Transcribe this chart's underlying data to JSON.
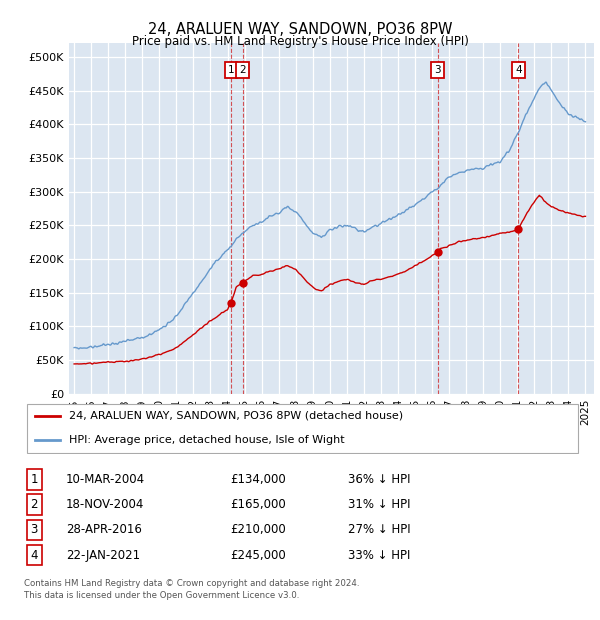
{
  "title": "24, ARALUEN WAY, SANDOWN, PO36 8PW",
  "subtitle": "Price paid vs. HM Land Registry's House Price Index (HPI)",
  "ylabel_ticks": [
    "£0",
    "£50K",
    "£100K",
    "£150K",
    "£200K",
    "£250K",
    "£300K",
    "£350K",
    "£400K",
    "£450K",
    "£500K"
  ],
  "ytick_vals": [
    0,
    50000,
    100000,
    150000,
    200000,
    250000,
    300000,
    350000,
    400000,
    450000,
    500000
  ],
  "ylim": [
    0,
    520000
  ],
  "xlim_start": 1994.7,
  "xlim_end": 2025.5,
  "hpi_color": "#6699cc",
  "price_color": "#cc0000",
  "bg_color": "#dce6f1",
  "grid_color": "#ffffff",
  "transactions": [
    {
      "num": 1,
      "date": "10-MAR-2004",
      "price": 134000,
      "pct": "36%",
      "x": 2004.19
    },
    {
      "num": 2,
      "date": "18-NOV-2004",
      "price": 165000,
      "pct": "31%",
      "x": 2004.88
    },
    {
      "num": 3,
      "date": "28-APR-2016",
      "price": 210000,
      "pct": "27%",
      "x": 2016.32
    },
    {
      "num": 4,
      "date": "22-JAN-2021",
      "price": 245000,
      "pct": "33%",
      "x": 2021.06
    }
  ],
  "legend_line1": "24, ARALUEN WAY, SANDOWN, PO36 8PW (detached house)",
  "legend_line2": "HPI: Average price, detached house, Isle of Wight",
  "footer1": "Contains HM Land Registry data © Crown copyright and database right 2024.",
  "footer2": "This data is licensed under the Open Government Licence v3.0.",
  "xtick_years": [
    1995,
    1996,
    1997,
    1998,
    1999,
    2000,
    2001,
    2002,
    2003,
    2004,
    2005,
    2006,
    2007,
    2008,
    2009,
    2010,
    2011,
    2012,
    2013,
    2014,
    2015,
    2016,
    2017,
    2018,
    2019,
    2020,
    2021,
    2022,
    2023,
    2024,
    2025
  ],
  "hpi_keypoints": [
    [
      1995.0,
      67000
    ],
    [
      1996.0,
      69000
    ],
    [
      1997.0,
      73000
    ],
    [
      1998.0,
      77000
    ],
    [
      1999.0,
      83000
    ],
    [
      2000.0,
      95000
    ],
    [
      2001.0,
      115000
    ],
    [
      2002.0,
      150000
    ],
    [
      2003.0,
      185000
    ],
    [
      2004.0,
      215000
    ],
    [
      2004.19,
      218000
    ],
    [
      2004.5,
      230000
    ],
    [
      2004.88,
      237000
    ],
    [
      2005.0,
      240000
    ],
    [
      2005.5,
      250000
    ],
    [
      2006.0,
      255000
    ],
    [
      2006.5,
      263000
    ],
    [
      2007.0,
      268000
    ],
    [
      2007.5,
      278000
    ],
    [
      2008.0,
      270000
    ],
    [
      2008.5,
      255000
    ],
    [
      2009.0,
      238000
    ],
    [
      2009.5,
      232000
    ],
    [
      2010.0,
      242000
    ],
    [
      2010.5,
      248000
    ],
    [
      2011.0,
      250000
    ],
    [
      2011.5,
      245000
    ],
    [
      2012.0,
      240000
    ],
    [
      2012.5,
      248000
    ],
    [
      2013.0,
      252000
    ],
    [
      2013.5,
      258000
    ],
    [
      2014.0,
      265000
    ],
    [
      2014.5,
      272000
    ],
    [
      2015.0,
      280000
    ],
    [
      2015.5,
      290000
    ],
    [
      2016.0,
      300000
    ],
    [
      2016.32,
      305000
    ],
    [
      2016.5,
      310000
    ],
    [
      2017.0,
      320000
    ],
    [
      2017.5,
      328000
    ],
    [
      2018.0,
      330000
    ],
    [
      2018.5,
      333000
    ],
    [
      2019.0,
      335000
    ],
    [
      2019.5,
      340000
    ],
    [
      2020.0,
      345000
    ],
    [
      2020.5,
      360000
    ],
    [
      2021.0,
      385000
    ],
    [
      2021.06,
      387000
    ],
    [
      2021.5,
      415000
    ],
    [
      2022.0,
      440000
    ],
    [
      2022.5,
      460000
    ],
    [
      2022.7,
      463000
    ],
    [
      2023.0,
      450000
    ],
    [
      2023.5,
      430000
    ],
    [
      2024.0,
      415000
    ],
    [
      2024.5,
      408000
    ],
    [
      2025.0,
      405000
    ]
  ],
  "price_keypoints": [
    [
      1995.0,
      44000
    ],
    [
      1996.0,
      45000
    ],
    [
      1997.0,
      47000
    ],
    [
      1998.0,
      48000
    ],
    [
      1999.0,
      51000
    ],
    [
      2000.0,
      58000
    ],
    [
      2001.0,
      68000
    ],
    [
      2002.0,
      88000
    ],
    [
      2003.0,
      108000
    ],
    [
      2004.0,
      125000
    ],
    [
      2004.19,
      134000
    ],
    [
      2004.5,
      158000
    ],
    [
      2004.88,
      165000
    ],
    [
      2005.0,
      167000
    ],
    [
      2005.5,
      175000
    ],
    [
      2006.0,
      177000
    ],
    [
      2006.5,
      182000
    ],
    [
      2007.0,
      185000
    ],
    [
      2007.5,
      190000
    ],
    [
      2008.0,
      185000
    ],
    [
      2008.5,
      170000
    ],
    [
      2009.0,
      158000
    ],
    [
      2009.5,
      152000
    ],
    [
      2010.0,
      162000
    ],
    [
      2010.5,
      167000
    ],
    [
      2011.0,
      170000
    ],
    [
      2011.5,
      165000
    ],
    [
      2012.0,
      162000
    ],
    [
      2012.5,
      168000
    ],
    [
      2013.0,
      170000
    ],
    [
      2013.5,
      173000
    ],
    [
      2014.0,
      177000
    ],
    [
      2014.5,
      183000
    ],
    [
      2015.0,
      190000
    ],
    [
      2015.5,
      197000
    ],
    [
      2016.0,
      205000
    ],
    [
      2016.32,
      210000
    ],
    [
      2016.5,
      215000
    ],
    [
      2017.0,
      220000
    ],
    [
      2017.5,
      225000
    ],
    [
      2018.0,
      228000
    ],
    [
      2018.5,
      230000
    ],
    [
      2019.0,
      232000
    ],
    [
      2019.5,
      235000
    ],
    [
      2020.0,
      238000
    ],
    [
      2020.5,
      240000
    ],
    [
      2021.0,
      243000
    ],
    [
      2021.06,
      245000
    ],
    [
      2021.5,
      265000
    ],
    [
      2022.0,
      285000
    ],
    [
      2022.3,
      295000
    ],
    [
      2022.6,
      285000
    ],
    [
      2023.0,
      278000
    ],
    [
      2023.5,
      272000
    ],
    [
      2024.0,
      268000
    ],
    [
      2024.5,
      265000
    ],
    [
      2025.0,
      263000
    ]
  ]
}
